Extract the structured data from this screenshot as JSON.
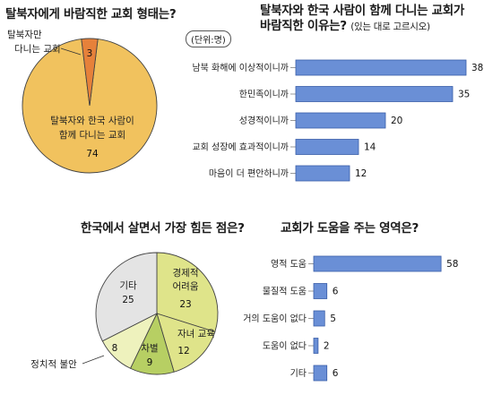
{
  "chart_data": [
    {
      "type": "pie",
      "title": "탈북자에게 바람직한 교회 형태는?",
      "slices": [
        {
          "label": "탈북자와 한국 사람이 함께 다니는 교회",
          "value": 74,
          "color": "#f1c25e"
        },
        {
          "label": "탈북자만 다니는 교회",
          "value": 3,
          "color": "#e6813a"
        }
      ]
    },
    {
      "type": "bar",
      "title": "탈북자와 한국 사람이 함께 다니는 교회가 바람직한 이유는?",
      "title_line1": "탈북자와 한국 사람이 함께 다니는 교회가",
      "title_line2": "바람직한 이유는?",
      "note": "(있는 대로 고르시오)",
      "unit": "(단위:명)",
      "categories": [
        "남북 화해에 이상적이니까",
        "한민족이니까",
        "성경적이니까",
        "교회 성장에 효과적이니까",
        "마음이 더 편안하니까"
      ],
      "values": [
        38,
        35,
        20,
        14,
        12
      ],
      "color": "#6a8fd6"
    },
    {
      "type": "pie",
      "title": "한국에서 살면서 가장 힘든 점은?",
      "slices": [
        {
          "label": "경제적 어려움",
          "value": 23,
          "color": "#dfe48a"
        },
        {
          "label": "자녀 교육",
          "value": 12,
          "color": "#dfe48a"
        },
        {
          "label": "차별",
          "value": 9,
          "color": "#b7cf63"
        },
        {
          "label": "정치적 불안",
          "value": 8,
          "color": "#eef2bd"
        },
        {
          "label": "기타",
          "value": 25,
          "color": "#e4e4e4"
        }
      ]
    },
    {
      "type": "bar",
      "title": "교회가 도움을 주는 영역은?",
      "categories": [
        "영적 도움",
        "물질적 도움",
        "거의 도움이 없다",
        "도움이 없다",
        "기타"
      ],
      "values": [
        58,
        6,
        5,
        2,
        6
      ],
      "color": "#6a8fd6"
    }
  ],
  "labels": {
    "pie1_big_line1": "탈북자와 한국 사람이",
    "pie1_big_line2": "함께 다니는 교회",
    "pie1_small_line1": "탈북자만",
    "pie1_small_line2": "다니는 교회",
    "pie2_econ_line1": "경제적",
    "pie2_econ_line2": "어려움",
    "pie2_other": "기타",
    "pie2_edu": "자녀 교육",
    "pie2_disc": "차별",
    "pie2_pol": "정치적 불안"
  }
}
